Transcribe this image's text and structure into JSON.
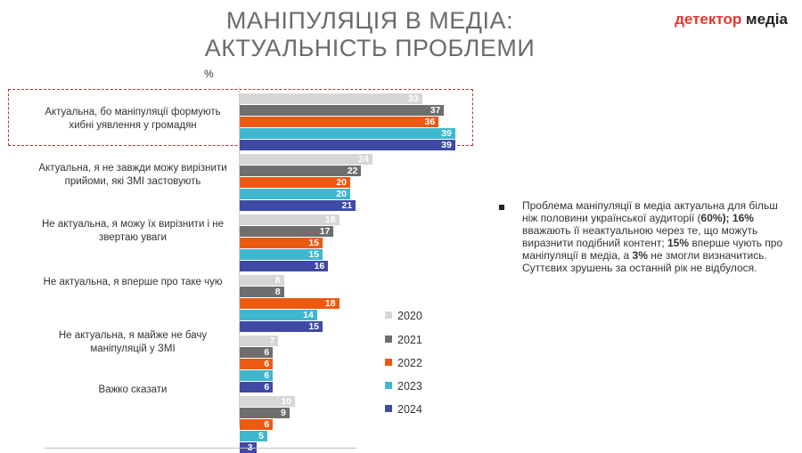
{
  "title_line1": "МАНІПУЛЯЦІЯ В МЕДІА:",
  "title_line2": "АКТУАЛЬНІСТЬ ПРОБЛЕМИ",
  "logo_part1": "детектор",
  "logo_part2": " медіа",
  "unit_label": "%",
  "colors": {
    "2020": "#d6d6d6",
    "2021": "#6e6e6e",
    "2022": "#ec5a12",
    "2023": "#3fb8cf",
    "2024": "#3e4aa3",
    "highlight_border": "#c03030"
  },
  "note": {
    "t1": "Проблема маніпуляції в медіа актуальна для більш ніж половини української аудиторії (",
    "b1": "60%); 16%",
    "t2": " вважають її неактуальною через те, що можуть виразнити подібний контент; ",
    "b2": "15%",
    "t3": " вперше чують про маніпуляції в медіа, а ",
    "b3": "3%",
    "t4": " не змогли визначитись. Суттєвих зрушень за останній рік не відбулося."
  },
  "chart_data": {
    "type": "bar",
    "orientation": "horizontal",
    "unit": "%",
    "categories": [
      "Актуальна, бо маніпуляції формують хибні уявлення у громадян",
      "Актуальна, я не завжди можу вирізнити прийоми, які ЗМІ застовують",
      "Не актуальна, я можу їх вирізнити і не звертаю уваги",
      "Не актуальна, я вперше про таке чую",
      "Не актуальна, я майже не бачу маніпуляцій у ЗМІ",
      "Важко сказати"
    ],
    "series": [
      {
        "name": "2020",
        "values": [
          33,
          24,
          18,
          8,
          7,
          10
        ]
      },
      {
        "name": "2021",
        "values": [
          37,
          22,
          17,
          8,
          6,
          9
        ]
      },
      {
        "name": "2022",
        "values": [
          36,
          20,
          15,
          18,
          6,
          6
        ]
      },
      {
        "name": "2023",
        "values": [
          39,
          20,
          15,
          14,
          6,
          5
        ]
      },
      {
        "name": "2024",
        "values": [
          39,
          21,
          16,
          15,
          6,
          3
        ]
      }
    ],
    "highlighted_category": "Актуальна, бо маніпуляції формують хибні уявлення у громадян",
    "legend_placement": "right of bars, lower half",
    "grid": false
  }
}
